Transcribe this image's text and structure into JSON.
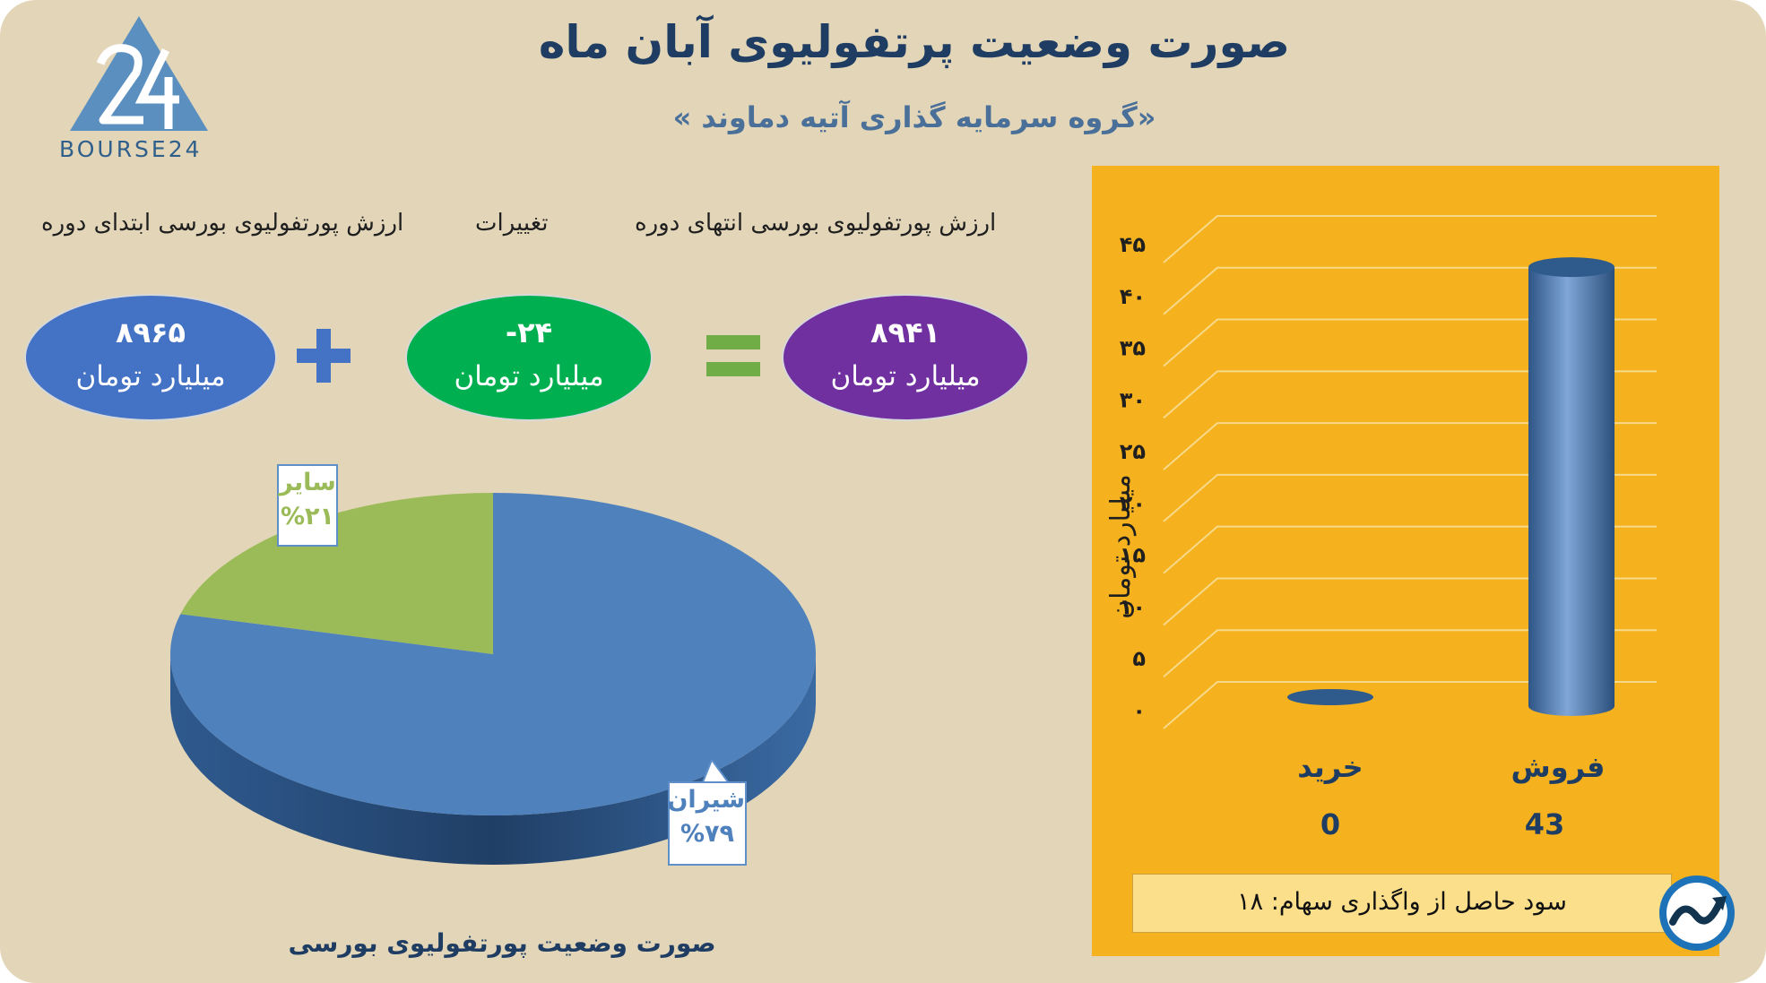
{
  "header": {
    "title": "صورت وضعیت پرتفولیوی آبان ماه",
    "subtitle": "«گروه سرمایه گذاری آتیه دماوند »"
  },
  "logo": {
    "text": "BOURSE24"
  },
  "equation": {
    "labels": {
      "start": "ارزش پورتفولیوی بورسی ابتدای دوره",
      "change": "تغییرات",
      "end": "ارزش پورتفولیوی بورسی انتهای دوره"
    },
    "start": {
      "value": "۸۹۶۵",
      "unit": "میلیارد تومان",
      "color": "#4472c4"
    },
    "change": {
      "value": "-۲۴",
      "unit": "میلیارد تومان",
      "color": "#00b050"
    },
    "end": {
      "value": "۸۹۴۱",
      "unit": "میلیارد تومان",
      "color": "#7030a0"
    },
    "plus_color": "#4472c4",
    "equals_color": "#70ad47"
  },
  "chart_data": [
    {
      "type": "pie",
      "title": "صورت وضعیت پورتفولیوی بورسی",
      "slices": [
        {
          "label": "شیران",
          "value": 79,
          "display": "%۷۹",
          "color": "#4f81bd"
        },
        {
          "label": "سایر",
          "value": 21,
          "display": "%۲۱",
          "color": "#9bbb59"
        }
      ]
    },
    {
      "type": "bar",
      "categories": [
        "خرید",
        "فروش"
      ],
      "values": [
        0,
        43
      ],
      "value_labels": [
        "0",
        "43"
      ],
      "ylabel": "میلیارد تومان",
      "ylim": [
        0,
        45
      ],
      "y_ticks": [
        "۰",
        "۵",
        "۱۰",
        "۱۵",
        "۲۰",
        "۲۵",
        "۳۰",
        "۳۵",
        "۴۰",
        "۴۵"
      ],
      "grid": true,
      "bar_color": "#4a7ab5",
      "background": "#f5b21e"
    }
  ],
  "profit": {
    "text": "سود حاصل از واگذاری سهام: ۱۸"
  }
}
